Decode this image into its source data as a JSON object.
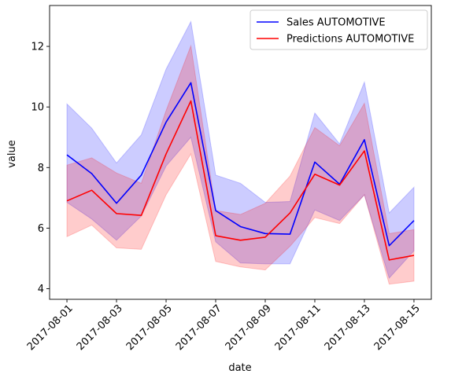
{
  "chart_data": {
    "type": "line",
    "title": "",
    "xlabel": "date",
    "ylabel": "value",
    "x": [
      "2017-08-01",
      "2017-08-02",
      "2017-08-03",
      "2017-08-04",
      "2017-08-05",
      "2017-08-06",
      "2017-08-07",
      "2017-08-08",
      "2017-08-09",
      "2017-08-10",
      "2017-08-11",
      "2017-08-12",
      "2017-08-13",
      "2017-08-14",
      "2017-08-15"
    ],
    "xticks": [
      "2017-08-01",
      "2017-08-03",
      "2017-08-05",
      "2017-08-07",
      "2017-08-09",
      "2017-08-11",
      "2017-08-13",
      "2017-08-15"
    ],
    "yticks": [
      4,
      6,
      8,
      10,
      12
    ],
    "ylim": [
      3.65,
      13.35
    ],
    "grid": false,
    "legend_position": "top-right",
    "series": [
      {
        "name": "Sales AUTOMOTIVE",
        "color": "#0000ff",
        "band_color": "#0000ff",
        "values": [
          8.42,
          7.8,
          6.82,
          7.75,
          9.5,
          10.8,
          6.58,
          6.05,
          5.82,
          5.8,
          8.18,
          7.45,
          8.92,
          5.42,
          6.25
        ],
        "lower": [
          6.85,
          6.3,
          5.6,
          6.4,
          8.05,
          9.0,
          5.55,
          4.85,
          4.82,
          4.82,
          6.6,
          6.25,
          7.1,
          4.35,
          5.25
        ],
        "upper": [
          10.1,
          9.3,
          8.15,
          9.08,
          11.25,
          12.82,
          7.75,
          7.48,
          6.85,
          6.88,
          9.8,
          8.78,
          10.82,
          6.5,
          7.35
        ]
      },
      {
        "name": "Predictions AUTOMOTIVE",
        "color": "#ff0000",
        "band_color": "#ff0000",
        "values": [
          6.9,
          7.25,
          6.48,
          6.42,
          8.45,
          10.2,
          5.75,
          5.6,
          5.7,
          6.5,
          7.78,
          7.42,
          8.55,
          4.95,
          5.1
        ],
        "lower": [
          5.72,
          6.1,
          5.35,
          5.3,
          7.1,
          8.45,
          4.9,
          4.72,
          4.62,
          5.4,
          6.35,
          6.15,
          7.1,
          4.15,
          4.25
        ],
        "upper": [
          8.08,
          8.32,
          7.82,
          7.48,
          9.88,
          12.02,
          6.58,
          6.45,
          6.82,
          7.72,
          9.32,
          8.72,
          10.12,
          5.82,
          5.95
        ]
      }
    ]
  }
}
